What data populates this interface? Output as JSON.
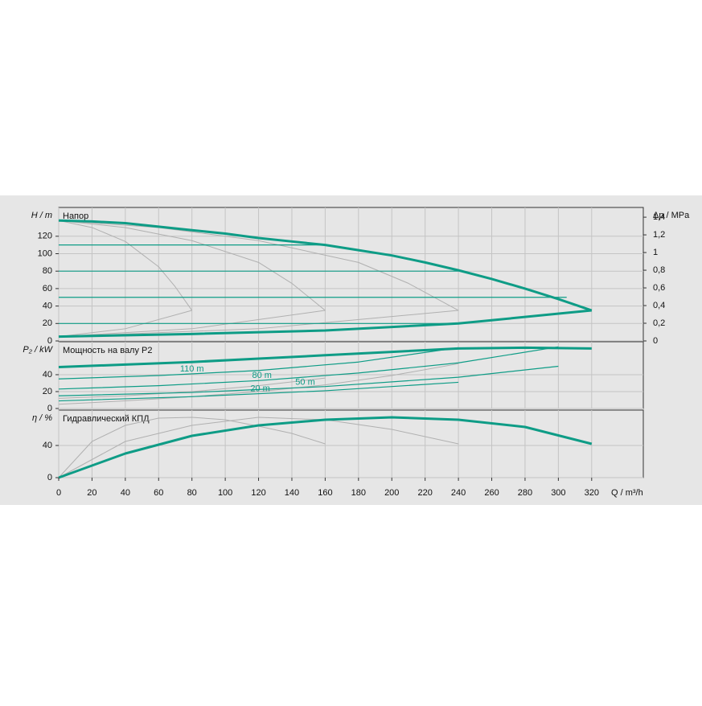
{
  "chart_data": [
    {
      "type": "line",
      "axis_label": "H / m",
      "title": "Напор",
      "y2_axis_label": "Δp / MPa",
      "ylim": [
        0,
        153
      ],
      "yticks": [
        0,
        20,
        40,
        60,
        80,
        100,
        120
      ],
      "y2lim": [
        0,
        1.51
      ],
      "y2ticks": [
        0,
        {
          "value": 0.2,
          "label": "0,2"
        },
        {
          "value": 0.4,
          "label": "0,4"
        },
        {
          "value": 0.6,
          "label": "0,6"
        },
        {
          "value": 0.8,
          "label": "0,8"
        },
        1,
        {
          "value": 1.2,
          "label": "1,2"
        },
        {
          "value": 1.4,
          "label": "1,4"
        }
      ],
      "grid": true,
      "series": [
        {
          "color": "#b0b0b0",
          "width": 1,
          "x": [
            0,
            20,
            40,
            60,
            70,
            80
          ],
          "values": [
            138,
            130,
            114,
            85,
            62,
            35
          ]
        },
        {
          "color": "#b0b0b0",
          "width": 1,
          "x": [
            0,
            40,
            80,
            120,
            140,
            160
          ],
          "values": [
            138,
            130,
            115,
            90,
            66,
            35
          ]
        },
        {
          "color": "#b0b0b0",
          "width": 1,
          "x": [
            0,
            60,
            120,
            180,
            210,
            240
          ],
          "values": [
            138,
            130,
            115,
            90,
            66,
            35
          ]
        },
        {
          "color": "#b0b0b0",
          "width": 1,
          "x": [
            0,
            40,
            80
          ],
          "values": [
            5,
            14,
            35
          ]
        },
        {
          "color": "#b0b0b0",
          "width": 1,
          "x": [
            0,
            80,
            160
          ],
          "values": [
            5,
            14,
            35
          ]
        },
        {
          "color": "#b0b0b0",
          "width": 1,
          "x": [
            0,
            120,
            240
          ],
          "values": [
            5,
            14,
            35
          ]
        },
        {
          "color": "#0e9c86",
          "width": 1.2,
          "x": [
            0,
            160
          ],
          "values": [
            110,
            110
          ]
        },
        {
          "color": "#0e9c86",
          "width": 1.2,
          "x": [
            0,
            240
          ],
          "values": [
            80,
            80
          ]
        },
        {
          "color": "#0e9c86",
          "width": 1.2,
          "x": [
            0,
            305
          ],
          "values": [
            50,
            50
          ]
        },
        {
          "color": "#0e9c86",
          "width": 1.2,
          "x": [
            0,
            240
          ],
          "values": [
            20,
            20
          ]
        },
        {
          "color": "#0e9c86",
          "width": 3,
          "x": [
            0,
            20,
            40,
            60,
            80,
            100,
            120,
            140,
            160,
            180,
            200,
            220,
            240,
            260,
            280,
            300,
            320
          ],
          "values": [
            138,
            137,
            135,
            131,
            127,
            123,
            118,
            114,
            110,
            104,
            98,
            90,
            81,
            71,
            60,
            48,
            35
          ]
        },
        {
          "color": "#0e9c86",
          "width": 3,
          "x": [
            0,
            80,
            160,
            240,
            320
          ],
          "values": [
            5,
            8,
            12,
            20,
            35
          ]
        }
      ]
    },
    {
      "type": "line",
      "axis_label": "P₂ / kW",
      "title": "Мощность на валу P2",
      "ylim": [
        0,
        79
      ],
      "yticks": [
        0,
        20,
        40
      ],
      "grid": true,
      "series": [
        {
          "color": "#b0b0b0",
          "width": 1,
          "x": [
            0,
            40,
            80,
            120,
            160,
            200,
            240
          ],
          "values": [
            5,
            9,
            14,
            20,
            28,
            39,
            53
          ]
        },
        {
          "color": "#b0b0b0",
          "width": 1,
          "x": [
            0,
            40,
            80,
            120,
            160
          ],
          "values": [
            12,
            15,
            20,
            27,
            36
          ]
        },
        {
          "color": "#0e9c86",
          "width": 3,
          "x": [
            0,
            40,
            80,
            120,
            160,
            200,
            240,
            280,
            320
          ],
          "values": [
            49,
            52,
            55,
            59,
            63,
            67,
            71,
            72,
            71
          ]
        },
        {
          "name": "110 m",
          "color": "#0e9c86",
          "width": 1.2,
          "x": [
            0,
            60,
            120,
            180,
            240
          ],
          "values": [
            35,
            39,
            45,
            55,
            72
          ]
        },
        {
          "name": "80 m",
          "color": "#0e9c86",
          "width": 1.2,
          "x": [
            0,
            60,
            120,
            180,
            240,
            300
          ],
          "values": [
            23,
            27,
            33,
            42,
            54,
            73
          ]
        },
        {
          "name": "50 m",
          "color": "#0e9c86",
          "width": 1.2,
          "x": [
            0,
            80,
            160,
            240,
            300
          ],
          "values": [
            15,
            19,
            26,
            37,
            50
          ]
        },
        {
          "name": "20 m",
          "color": "#0e9c86",
          "width": 1.2,
          "x": [
            0,
            80,
            160,
            240
          ],
          "values": [
            9,
            14,
            21,
            31
          ]
        }
      ]
    },
    {
      "type": "line",
      "axis_label": "η / %",
      "title": "Гидравлический КПД",
      "ylim": [
        0,
        84
      ],
      "yticks": [
        0,
        40
      ],
      "grid": true,
      "xlim": [
        0,
        351
      ],
      "xticks": [
        0,
        20,
        40,
        60,
        80,
        100,
        120,
        140,
        160,
        180,
        200,
        220,
        240,
        260,
        280,
        300,
        320
      ],
      "x_axis_label": "Q / m³/h",
      "series": [
        {
          "color": "#b0b0b0",
          "width": 1,
          "x": [
            0,
            20,
            40,
            60,
            80,
            100,
            120,
            140,
            160
          ],
          "values": [
            0,
            45,
            65,
            74,
            75,
            72,
            64,
            55,
            42
          ]
        },
        {
          "color": "#b0b0b0",
          "width": 1,
          "x": [
            0,
            40,
            80,
            120,
            160,
            200,
            240
          ],
          "values": [
            0,
            45,
            65,
            75,
            72,
            60,
            42
          ]
        },
        {
          "color": "#0e9c86",
          "width": 3,
          "x": [
            0,
            40,
            80,
            120,
            160,
            200,
            240,
            280,
            320
          ],
          "values": [
            0,
            30,
            52,
            65,
            72,
            75,
            72,
            63,
            42
          ]
        }
      ]
    }
  ]
}
